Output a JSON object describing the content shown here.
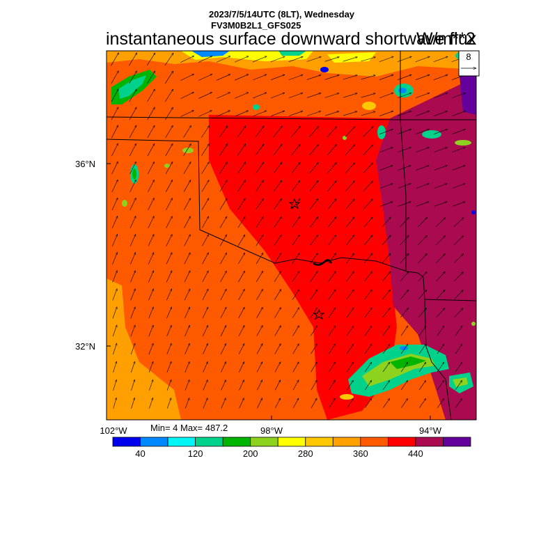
{
  "header": {
    "date_line": "2023/7/5/14UTC (8LT), Wednesday",
    "model_line": "FV3M0B2L1_GFS025",
    "variable": "instantaneous surface downward shortwave flux",
    "units": "W/m**2"
  },
  "vector_reference": {
    "value": "8"
  },
  "axes": {
    "lat_labels": [
      "36°N",
      "32°N"
    ],
    "lon_labels": [
      "102°W",
      "98°W",
      "94°W"
    ]
  },
  "stats": {
    "text": "Min= 4 Max= 487.2"
  },
  "colorbar": {
    "colors": [
      "#0000ee",
      "#0088ff",
      "#00f5f5",
      "#00d28c",
      "#00b400",
      "#8cd21e",
      "#ffff00",
      "#ffc800",
      "#ffa000",
      "#ff5a00",
      "#ff0000",
      "#aa0a50",
      "#64009b"
    ],
    "labels": [
      "40",
      "120",
      "200",
      "280",
      "360",
      "440"
    ]
  },
  "colors": {
    "background": "#ffffff",
    "outline": "#000000"
  }
}
